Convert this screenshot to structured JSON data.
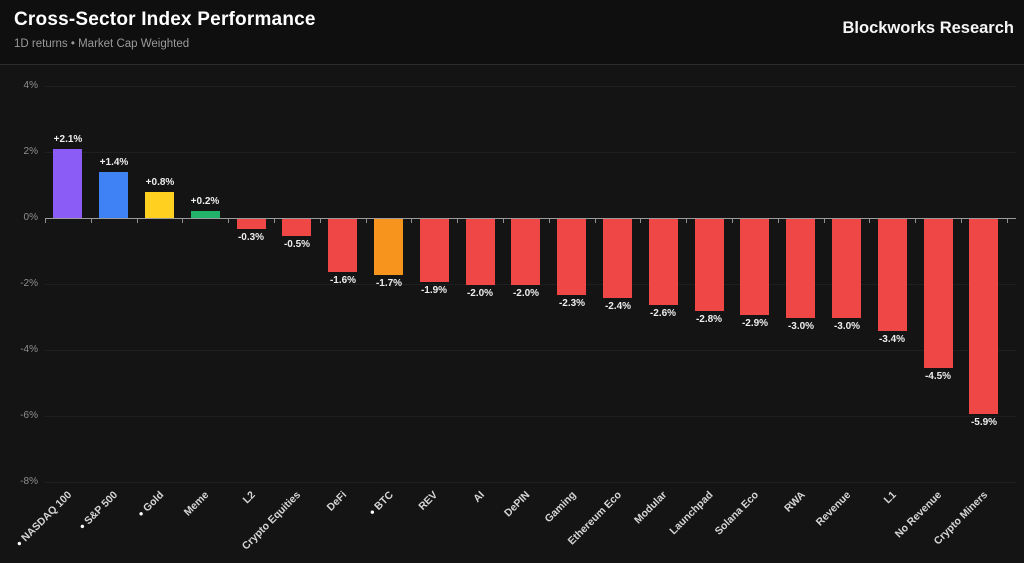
{
  "header": {
    "title": "Cross-Sector Index Performance",
    "subtitle": "1D returns • Market Cap Weighted",
    "brand": "Blockworks Research"
  },
  "colors": {
    "background": "#141414",
    "header_background": "#0f0f0f",
    "header_divider": "#2c2c2e",
    "gridline": "#1f1f1f",
    "zero_axis": "#9c9c9c",
    "axis_label": "#8f8f8f",
    "category_label": "#d6d6d6",
    "value_label": "#ededed",
    "purple": "#8b5cf6",
    "blue": "#3f82f6",
    "gold": "#ffd01f",
    "green": "#23b26a",
    "red": "#ef4646",
    "orange": "#f7941d"
  },
  "chart_data": {
    "type": "bar",
    "title": "Cross-Sector Index Performance",
    "subtitle": "1D returns • Market Cap Weighted",
    "xlabel": "",
    "ylabel": "",
    "ylim": [
      -8,
      4
    ],
    "yticks": [
      4,
      2,
      0,
      -2,
      -4,
      -6,
      -8
    ],
    "ytick_labels": [
      "4%",
      "2%",
      "0%",
      "-2%",
      "-4%",
      "-6%",
      "-8%"
    ],
    "grid": true,
    "legend": false,
    "categories": [
      "NASDAQ 100",
      "S&P 500",
      "Gold",
      "Meme",
      "L2",
      "Crypto Equities",
      "DeFi",
      "BTC",
      "REV",
      "AI",
      "DePIN",
      "Gaming",
      "Ethereum Eco",
      "Modular",
      "Launchpad",
      "Solana Eco",
      "RWA",
      "Revenue",
      "L1",
      "No Revenue",
      "Crypto Miners"
    ],
    "values": [
      2.1,
      1.4,
      0.8,
      0.2,
      -0.3,
      -0.5,
      -1.6,
      -1.7,
      -1.9,
      -2.0,
      -2.0,
      -2.3,
      -2.4,
      -2.6,
      -2.8,
      -2.9,
      -3.0,
      -3.0,
      -3.4,
      -4.5,
      -5.9
    ],
    "value_labels": [
      "+2.1%",
      "+1.4%",
      "+0.8%",
      "+0.2%",
      "-0.3%",
      "-0.5%",
      "-1.6%",
      "-1.7%",
      "-1.9%",
      "-2.0%",
      "-2.0%",
      "-2.3%",
      "-2.4%",
      "-2.6%",
      "-2.8%",
      "-2.9%",
      "-3.0%",
      "-3.0%",
      "-3.4%",
      "-4.5%",
      "-5.9%"
    ],
    "bar_colors": [
      "#8b5cf6",
      "#3f82f6",
      "#ffd01f",
      "#23b26a",
      "#ef4646",
      "#ef4646",
      "#ef4646",
      "#f7941d",
      "#ef4646",
      "#ef4646",
      "#ef4646",
      "#ef4646",
      "#ef4646",
      "#ef4646",
      "#ef4646",
      "#ef4646",
      "#ef4646",
      "#ef4646",
      "#ef4646",
      "#ef4646",
      "#ef4646"
    ],
    "bulleted": [
      true,
      true,
      true,
      false,
      false,
      false,
      false,
      true,
      false,
      false,
      false,
      false,
      false,
      false,
      false,
      false,
      false,
      false,
      false,
      false,
      false
    ]
  }
}
